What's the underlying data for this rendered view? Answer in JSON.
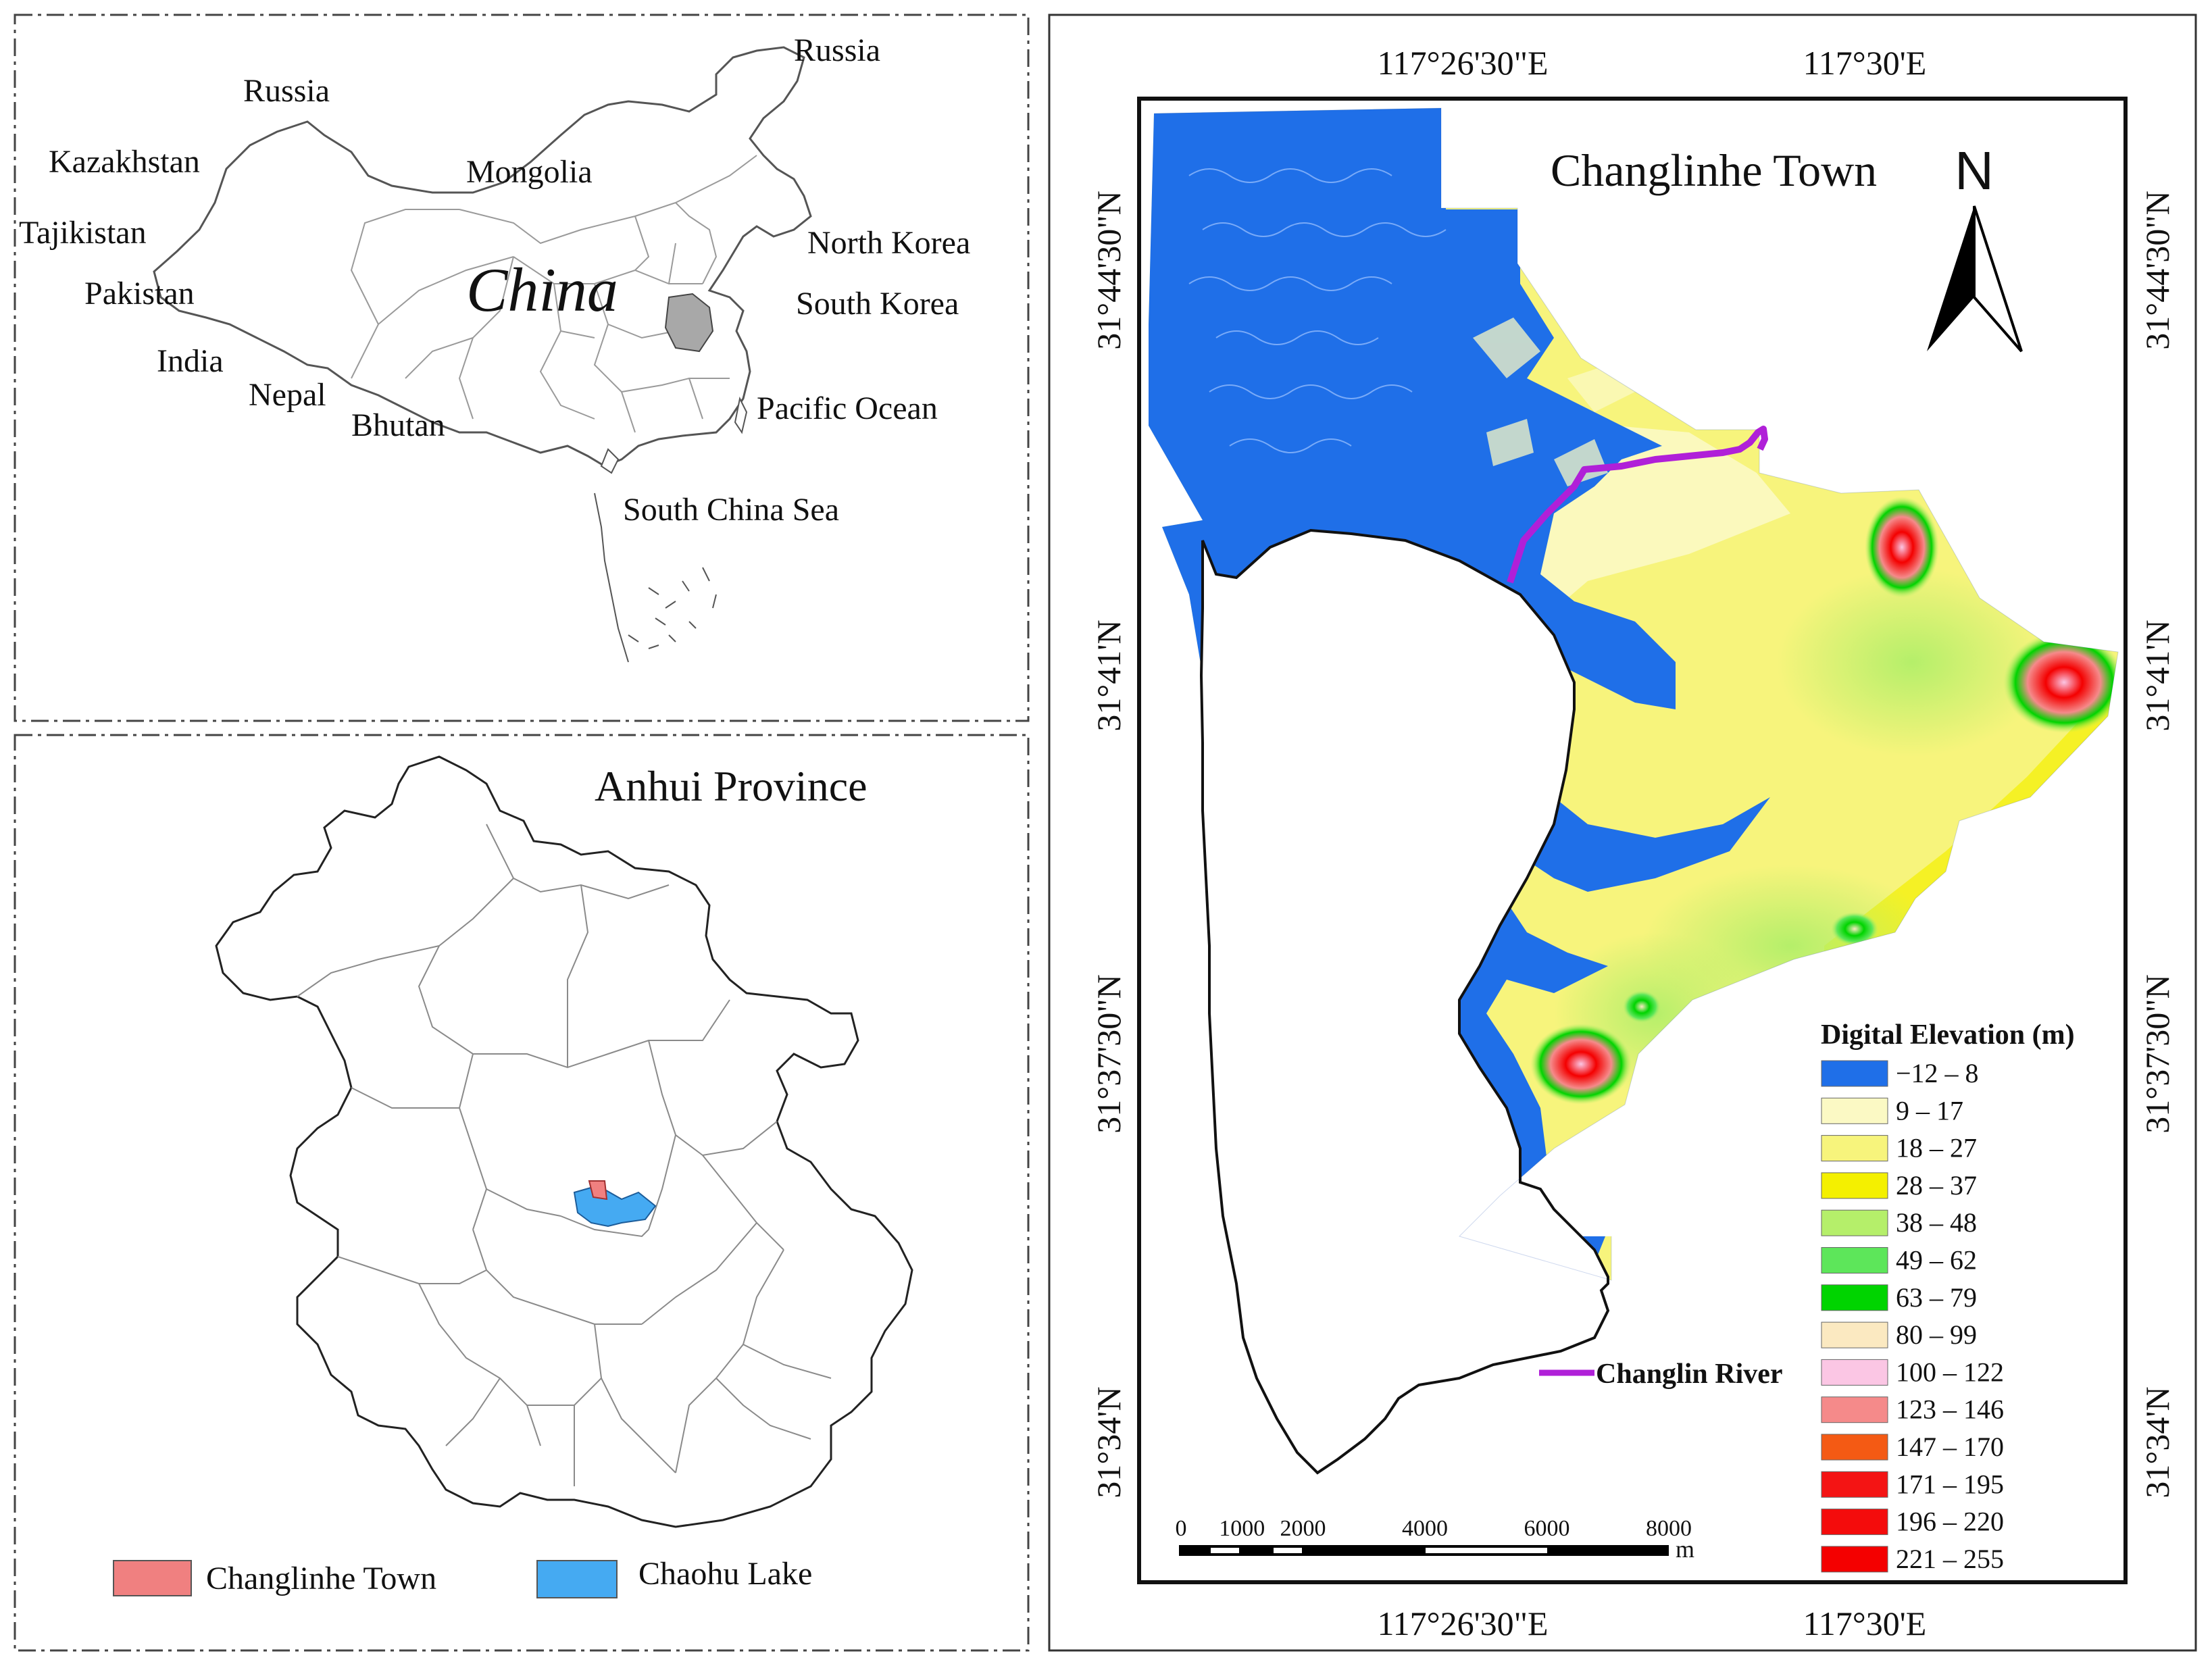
{
  "china_panel": {
    "country_labels": [
      "Russia",
      "Russia",
      "Kazakhstan",
      "Mongolia",
      "Tajikistan",
      "North Korea",
      "Pakistan",
      "South Korea",
      "India",
      "Nepal",
      "Bhutan",
      "Pacific  Ocean",
      "South China Sea"
    ],
    "main_label": "China"
  },
  "anhui_panel": {
    "title": "Anhui Province",
    "legend": [
      {
        "label": "Changlinhe Town",
        "color": "#f08080"
      },
      {
        "label": "Chaohu Lake",
        "color": "#45aaf2"
      }
    ]
  },
  "dem_panel": {
    "title": "Changlinhe Town",
    "north_label": "N",
    "top_lon_labels": [
      "117°26'30\"E",
      "117°30'E"
    ],
    "bottom_lon_labels": [
      "117°26'30\"E",
      "117°30'E"
    ],
    "left_lat_labels": [
      "31°44'30\"N",
      "31°41'N",
      "31°37'30\"N",
      "31°34'N"
    ],
    "right_lat_labels": [
      "31°44'30\"N",
      "31°41'N",
      "31°37'30\"N",
      "31°34'N"
    ],
    "legend_title": "Digital Elevation (m)",
    "legend": [
      {
        "label": "−12 – 8",
        "color": "#1f6fe8"
      },
      {
        "label": "9 – 17",
        "color": "#fbf9c4"
      },
      {
        "label": "18 – 27",
        "color": "#f7f47c"
      },
      {
        "label": "28 – 37",
        "color": "#f4f000"
      },
      {
        "label": "38 – 48",
        "color": "#b5ef6a"
      },
      {
        "label": "49 – 62",
        "color": "#5de65a"
      },
      {
        "label": "63 – 79",
        "color": "#00d400"
      },
      {
        "label": "80 – 99",
        "color": "#fbe9c1"
      },
      {
        "label": "100 – 122",
        "color": "#fbc6e4"
      },
      {
        "label": "123 – 146",
        "color": "#f58a8a"
      },
      {
        "label": "147 – 170",
        "color": "#f45a14"
      },
      {
        "label": "171 – 195",
        "color": "#f41414"
      },
      {
        "label": "196 – 220",
        "color": "#f40c0c"
      },
      {
        "label": "221 – 255",
        "color": "#f40000"
      }
    ],
    "river_label": "Changlin River",
    "river_color": "#b020d8",
    "scale_labels": [
      "0",
      "1000",
      "2000",
      "4000",
      "6000",
      "8000"
    ],
    "scale_unit": "m"
  }
}
